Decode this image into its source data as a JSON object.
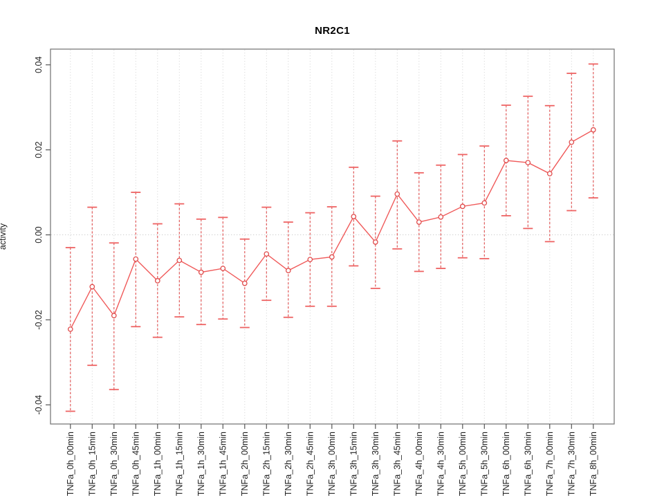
{
  "chart_data": {
    "type": "line",
    "subtype": "means-with-error-bars",
    "title": "NR2C1",
    "xlabel": "",
    "ylabel": "activity",
    "categories": [
      "TNFa_0h_00min",
      "TNFa_0h_15min",
      "TNFa_0h_30min",
      "TNFa_0h_45min",
      "TNFa_1h_00min",
      "TNFa_1h_15min",
      "TNFa_1h_30min",
      "TNFa_1h_45min",
      "TNFa_2h_00min",
      "TNFa_2h_15min",
      "TNFa_2h_30min",
      "TNFa_2h_45min",
      "TNFa_3h_00min",
      "TNFa_3h_15min",
      "TNFa_3h_30min",
      "TNFa_3h_45min",
      "TNFa_4h_00min",
      "TNFa_4h_30min",
      "TNFa_5h_00min",
      "TNFa_5h_30min",
      "TNFa_6h_00min",
      "TNFa_6h_30min",
      "TNFa_7h_00min",
      "TNFa_7h_30min",
      "TNFa_8h_00min"
    ],
    "series": [
      {
        "name": "activity",
        "values": [
          -0.0222,
          -0.0122,
          -0.019,
          -0.0057,
          -0.0108,
          -0.006,
          -0.0088,
          -0.0079,
          -0.0114,
          -0.0045,
          -0.0084,
          -0.0058,
          -0.0052,
          0.0043,
          -0.0017,
          0.0096,
          0.003,
          0.0042,
          0.0067,
          0.0075,
          0.0175,
          0.017,
          0.0144,
          0.0218,
          0.0247
        ],
        "upper": [
          -0.003,
          0.0065,
          -0.0019,
          0.01,
          0.0026,
          0.0073,
          0.0037,
          0.0041,
          -0.001,
          0.0065,
          0.003,
          0.0052,
          0.0066,
          0.0159,
          0.0091,
          0.0221,
          0.0146,
          0.0164,
          0.0189,
          0.0209,
          0.0305,
          0.0326,
          0.0304,
          0.038,
          0.0402
        ],
        "lower": [
          -0.0415,
          -0.0307,
          -0.0364,
          -0.0216,
          -0.0241,
          -0.0193,
          -0.0211,
          -0.0198,
          -0.0218,
          -0.0154,
          -0.0194,
          -0.0168,
          -0.0168,
          -0.0073,
          -0.0126,
          -0.0033,
          -0.0086,
          -0.0079,
          -0.0054,
          -0.0056,
          0.0045,
          0.0015,
          -0.0016,
          0.0057,
          0.0087
        ]
      }
    ],
    "ylim": [
      -0.0445,
      0.0437
    ],
    "yticks": [
      0.04,
      0.02,
      0.0,
      -0.02,
      -0.04
    ],
    "ytick_labels": [
      "0.04",
      "0.02",
      "0.00",
      "-0.02",
      "-0.04"
    ],
    "grid": {
      "vertical_dotted_per_category": true,
      "horizontal_dotted_at_zero": true
    },
    "legend": "none",
    "colors": {
      "error_bar": "#e04b4b",
      "error_cap": "#ee6363",
      "line": "#f05a5a",
      "marker_stroke": "#e04b4b",
      "marker_fill": "#ffffff",
      "grid": "#d9d9d9",
      "zero_line": "#cccccc",
      "box": "#7a7a7a",
      "tick": "#555555",
      "tick_text": "#1f1f1f"
    }
  }
}
